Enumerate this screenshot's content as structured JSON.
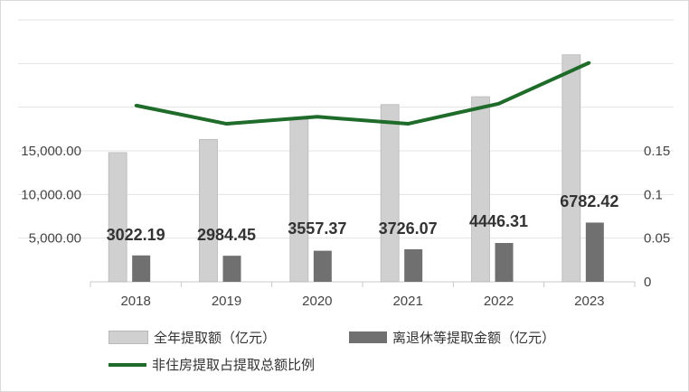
{
  "chart_data": {
    "type": "bar+line",
    "categories": [
      "2018",
      "2019",
      "2020",
      "2021",
      "2022",
      "2023"
    ],
    "series": [
      {
        "name": "全年提取额（亿元）",
        "type": "bar",
        "axis": "left",
        "color": "#d0d0d0",
        "values": [
          14800,
          16300,
          18600,
          20300,
          21200,
          26000
        ]
      },
      {
        "name": "离退休等提取金额（亿元）",
        "type": "bar",
        "axis": "left",
        "color": "#707070",
        "values": [
          3022.19,
          2984.45,
          3557.37,
          3726.07,
          4446.31,
          6782.42
        ],
        "labels": [
          "3022.19",
          "2984.45",
          "3557.37",
          "3726.07",
          "4446.31",
          "6782.42"
        ]
      },
      {
        "name": "非住房提取占提取总额比例",
        "type": "line",
        "axis": "right",
        "color": "#1e6b2a",
        "values": [
          0.202,
          0.181,
          0.189,
          0.181,
          0.204,
          0.251
        ]
      }
    ],
    "left_axis": {
      "ticks": [
        5000,
        10000,
        15000
      ],
      "tick_labels": [
        "5,000.00",
        "10,000.00",
        "15,000.00"
      ],
      "ylim": [
        0,
        30000
      ]
    },
    "right_axis": {
      "ticks": [
        0,
        0.05,
        0.1,
        0.15
      ],
      "tick_labels": [
        "0",
        "0.05",
        "0.1",
        "0.15"
      ],
      "ylim": [
        0,
        0.3
      ]
    },
    "x_tick_labels": [
      "2018",
      "2019",
      "2020",
      "2021",
      "2022",
      "2023"
    ],
    "grid": true,
    "legend": "bottom"
  }
}
